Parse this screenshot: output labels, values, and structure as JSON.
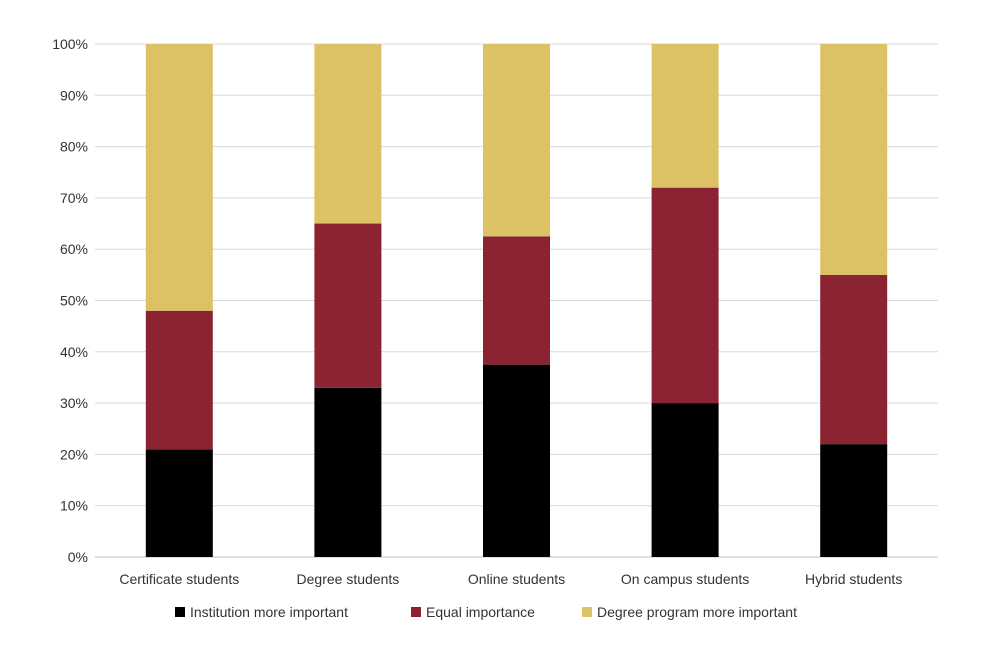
{
  "chart_data": {
    "type": "bar",
    "stacked": true,
    "percent": true,
    "categories": [
      "Certificate students",
      "Degree students",
      "Online students",
      "On campus students",
      "Hybrid students"
    ],
    "series": [
      {
        "name": "Institution more important",
        "color": "#000000",
        "values": [
          21,
          33,
          37.5,
          30,
          22
        ]
      },
      {
        "name": "Equal importance",
        "color": "#8B2332",
        "values": [
          27,
          32,
          25,
          42,
          33
        ]
      },
      {
        "name": "Degree program more important",
        "color": "#DCC265",
        "values": [
          52,
          35,
          37.5,
          28,
          45
        ]
      }
    ],
    "ylim": [
      0,
      100
    ],
    "yticks": [
      "0%",
      "10%",
      "20%",
      "30%",
      "40%",
      "50%",
      "60%",
      "70%",
      "80%",
      "90%",
      "100%"
    ],
    "grid": true,
    "legend": "bottom"
  }
}
